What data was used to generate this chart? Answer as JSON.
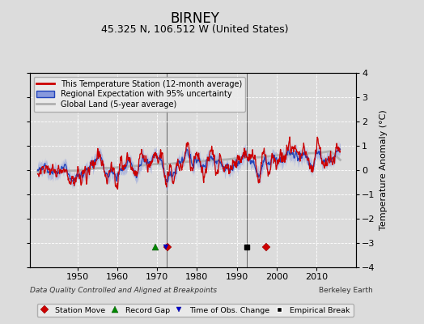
{
  "title": "BIRNEY",
  "subtitle": "45.325 N, 106.512 W (United States)",
  "ylabel": "Temperature Anomaly (°C)",
  "xlabel_note": "Data Quality Controlled and Aligned at Breakpoints",
  "credit": "Berkeley Earth",
  "ylim": [
    -4,
    4
  ],
  "xlim": [
    1938,
    2020
  ],
  "yticks": [
    -4,
    -3,
    -2,
    -1,
    0,
    1,
    2,
    3,
    4
  ],
  "xticks": [
    1950,
    1960,
    1970,
    1980,
    1990,
    2000,
    2010
  ],
  "station_moves": [
    1972.7,
    1997.5
  ],
  "record_gaps": [
    1969.5
  ],
  "tobs_changes": [
    1972.2
  ],
  "empirical_breaks": [
    1992.5
  ],
  "vlines": [
    1972.5,
    1992.5
  ],
  "bg_color": "#dcdcdc",
  "plot_bg_color": "#dcdcdc",
  "red_color": "#cc0000",
  "blue_color": "#2244bb",
  "blue_fill_color": "#8899dd",
  "gray_color": "#b0b0b0",
  "title_fontsize": 12,
  "subtitle_fontsize": 9,
  "tick_fontsize": 8,
  "label_fontsize": 8
}
